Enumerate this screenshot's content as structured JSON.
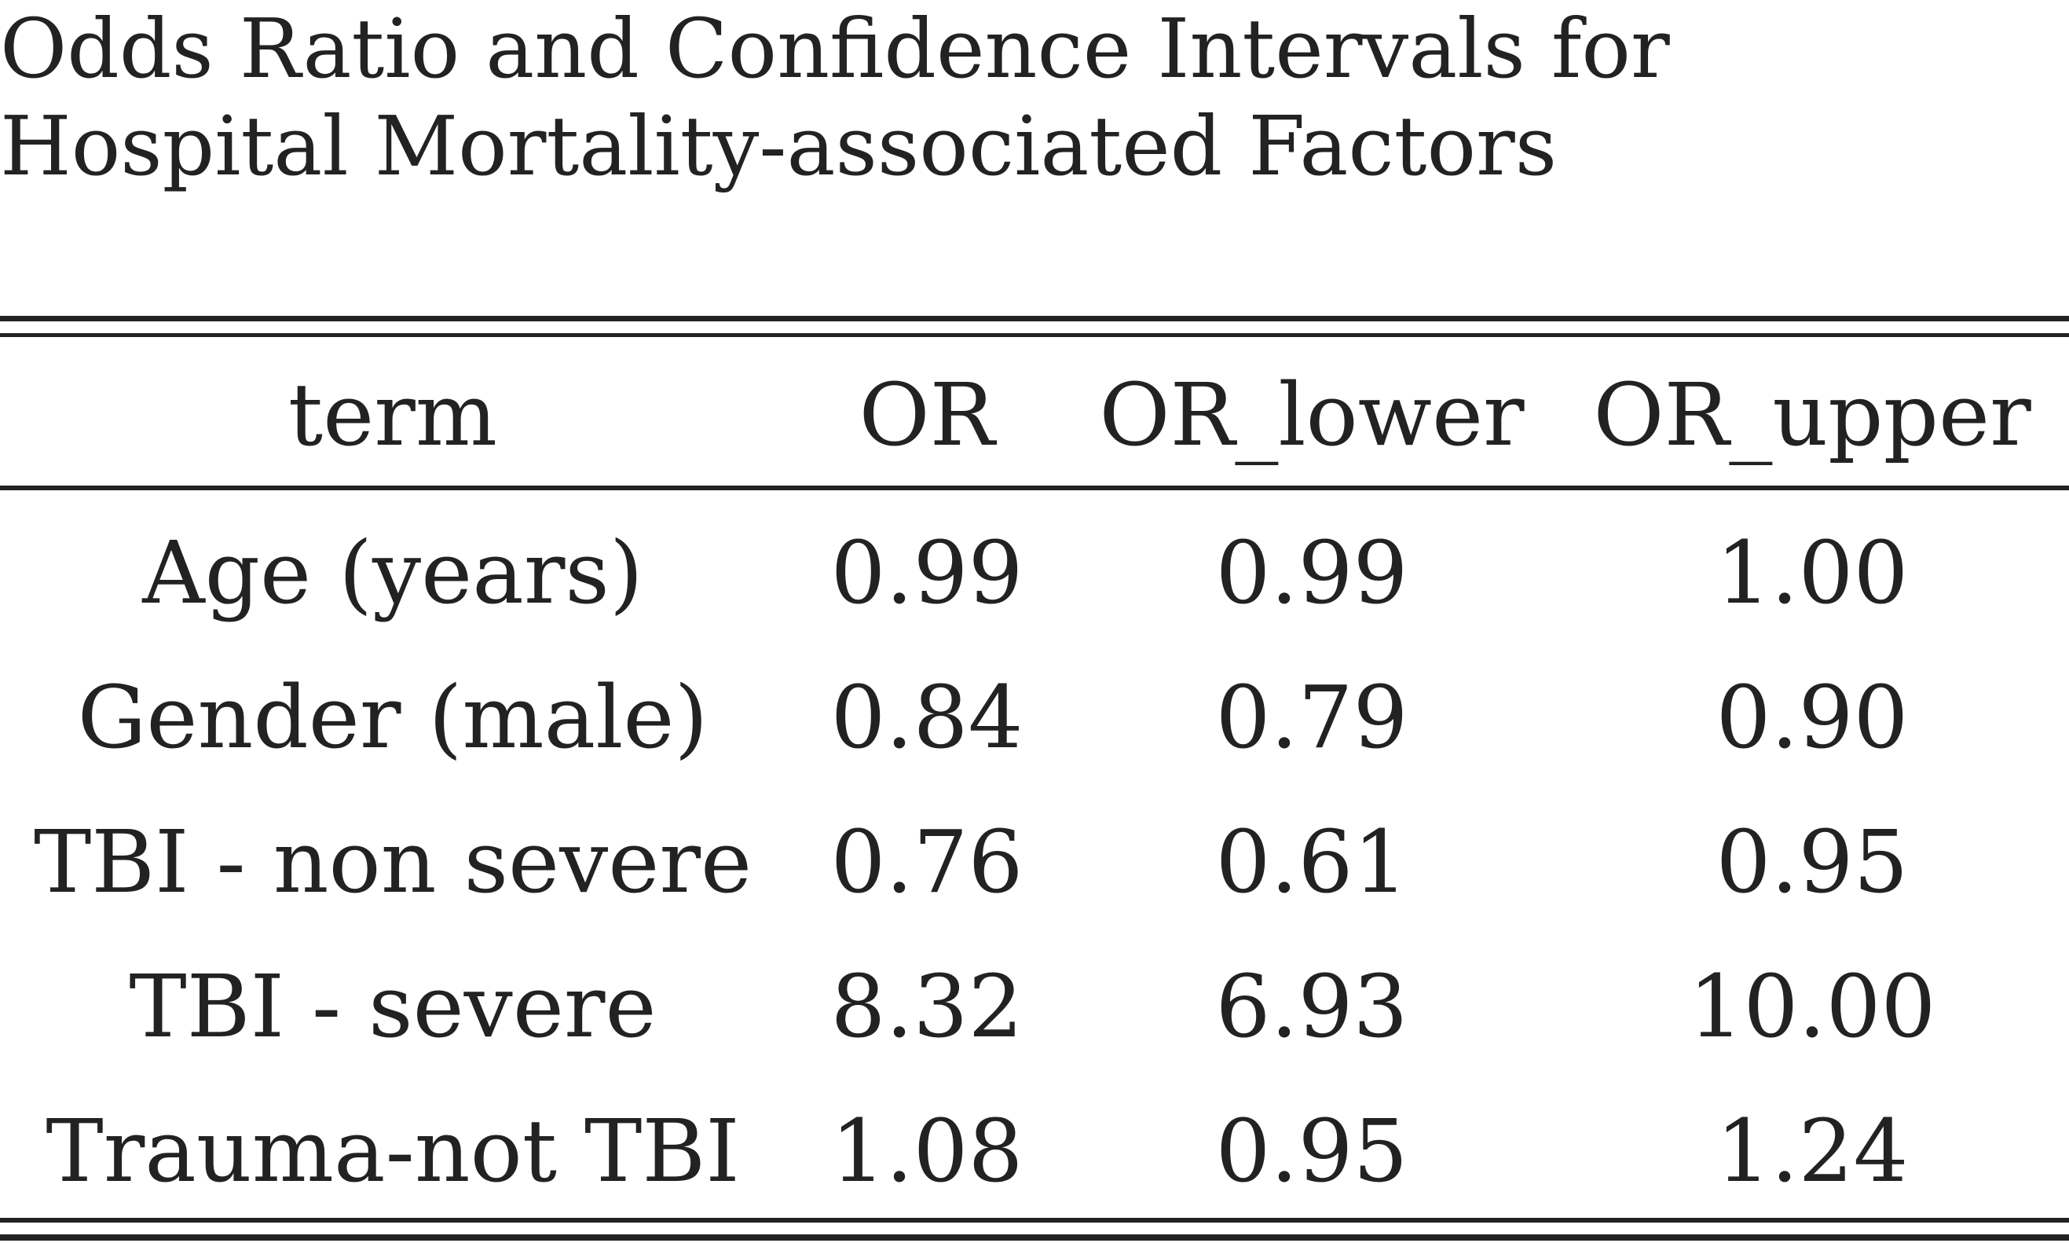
{
  "title": {
    "line1": "Odds Ratio and Confidence Intervals for",
    "line2": "Hospital Mortality-associated Factors"
  },
  "table": {
    "columns": [
      "term",
      "OR",
      "OR_lower",
      "OR_upper"
    ],
    "rows": [
      {
        "term": "Age (years)",
        "or": "0.99",
        "or_lower": "0.99",
        "or_upper": "1.00"
      },
      {
        "term": "Gender (male)",
        "or": "0.84",
        "or_lower": "0.79",
        "or_upper": "0.90"
      },
      {
        "term": "TBI - non severe",
        "or": "0.76",
        "or_lower": "0.61",
        "or_upper": "0.95"
      },
      {
        "term": "TBI - severe",
        "or": "8.32",
        "or_lower": "6.93",
        "or_upper": "10.00"
      },
      {
        "term": "Trauma-not TBI",
        "or": "1.08",
        "or_lower": "0.95",
        "or_upper": "1.24"
      }
    ]
  },
  "colors": {
    "text": "#222222",
    "background": "#ffffff",
    "rules": "#222222"
  }
}
